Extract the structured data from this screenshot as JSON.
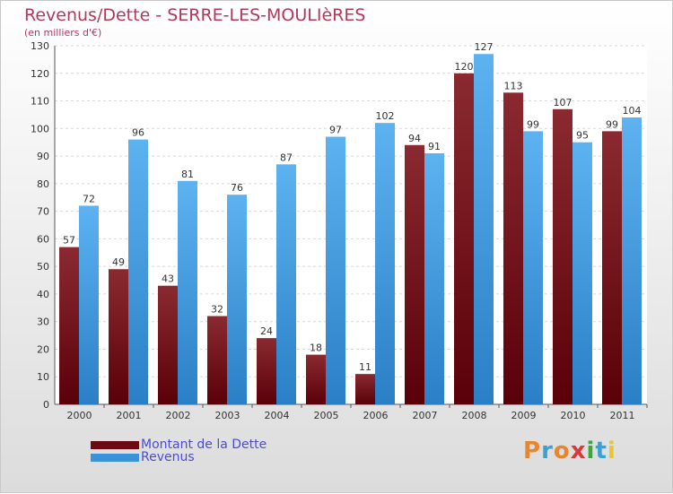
{
  "header": {
    "title": "Revenus/Dette - SERRE-LES-MOULIèRES",
    "subtitle": "(en milliers d'€)"
  },
  "legend": {
    "items": [
      {
        "label": "Montant de la Dette",
        "color": "#6b0a12"
      },
      {
        "label": "Revenus",
        "color": "#3a92d8"
      }
    ]
  },
  "brand": {
    "text": "Proxiti",
    "colors": [
      "#e8862e",
      "#3ba0d8",
      "#e8862e",
      "#d83a3a",
      "#3aa83a",
      "#3ba0d8",
      "#e8c72e"
    ]
  },
  "chart_data": {
    "type": "bar",
    "categories": [
      "2000",
      "2001",
      "2002",
      "2003",
      "2004",
      "2005",
      "2006",
      "2007",
      "2008",
      "2009",
      "2010",
      "2011"
    ],
    "series": [
      {
        "name": "Montant de la Dette",
        "values": [
          57,
          49,
          43,
          32,
          24,
          18,
          11,
          94,
          120,
          113,
          107,
          99
        ],
        "color": "#7a1a22"
      },
      {
        "name": "Revenus",
        "values": [
          72,
          96,
          81,
          76,
          87,
          97,
          102,
          91,
          127,
          99,
          95,
          104
        ],
        "color": "#4ea5e6"
      }
    ],
    "title": "Revenus/Dette - SERRE-LES-MOULIèRES",
    "subtitle": "(en milliers d'€)",
    "ylim": [
      0,
      130
    ],
    "yticks": [
      0,
      10,
      20,
      30,
      40,
      50,
      60,
      70,
      80,
      90,
      100,
      110,
      120,
      130
    ],
    "grid": true,
    "legend_position": "bottom-left"
  }
}
